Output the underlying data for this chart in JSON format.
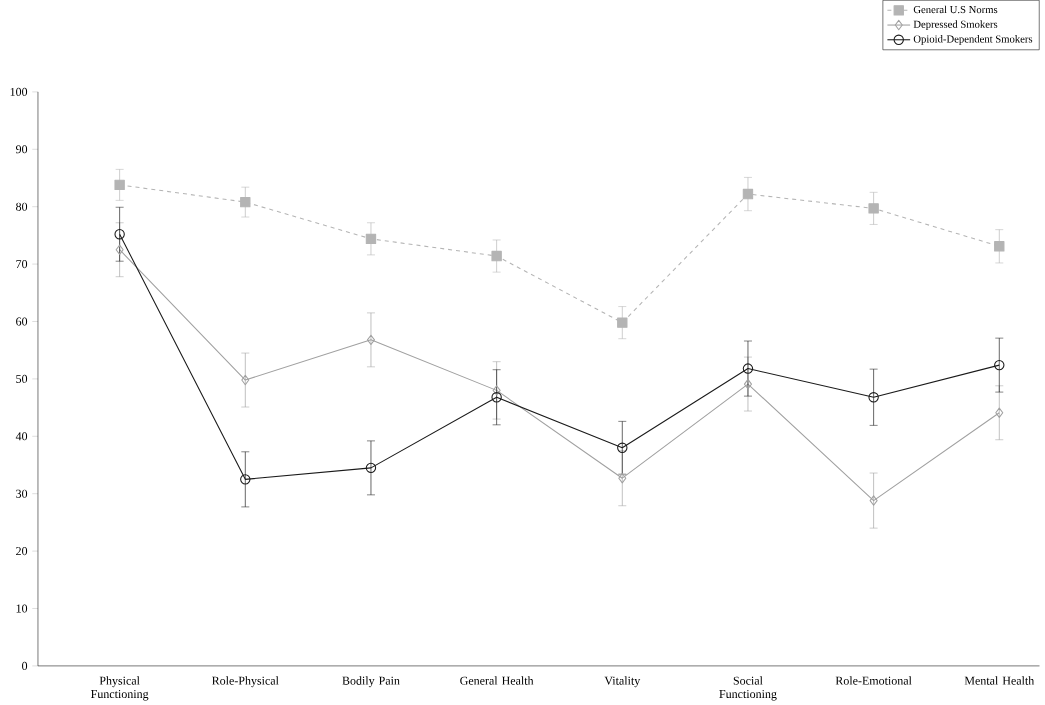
{
  "chart_data": {
    "type": "line",
    "categories": [
      "Physical Functioning",
      "Role-Physical",
      "Bodily Pain",
      "General Health",
      "Vitality",
      "Social Functioning",
      "Role-Emotional",
      "Mental Health"
    ],
    "series": [
      {
        "name": "General U.S Norms",
        "color": "#b4b4b4",
        "marker": "square",
        "line_style": "dashed",
        "values": [
          83.8,
          80.8,
          74.4,
          71.4,
          59.8,
          82.2,
          79.7,
          73.1
        ],
        "errors": [
          2.7,
          2.6,
          2.8,
          2.8,
          2.8,
          2.9,
          2.8,
          2.9
        ]
      },
      {
        "name": "Depressed Smokers",
        "color": "#a0a0a0",
        "marker": "diamond",
        "line_style": "solid",
        "values": [
          72.5,
          49.8,
          56.8,
          48.0,
          32.7,
          49.1,
          28.8,
          44.1
        ],
        "errors": [
          4.7,
          4.7,
          4.7,
          5.0,
          4.8,
          4.7,
          4.8,
          4.7
        ]
      },
      {
        "name": "Opioid-Dependent Smokers",
        "color": "#1a1a1a",
        "marker": "circle",
        "line_style": "solid",
        "values": [
          75.2,
          32.5,
          34.5,
          46.8,
          38.0,
          51.8,
          46.8,
          52.4
        ],
        "errors": [
          4.7,
          4.8,
          4.7,
          4.8,
          4.6,
          4.8,
          4.9,
          4.7
        ]
      }
    ],
    "ylim": [
      0,
      100
    ],
    "yticks": [
      0,
      10,
      20,
      30,
      40,
      50,
      60,
      70,
      80,
      90,
      100
    ],
    "grid": false,
    "legend": "top right"
  }
}
